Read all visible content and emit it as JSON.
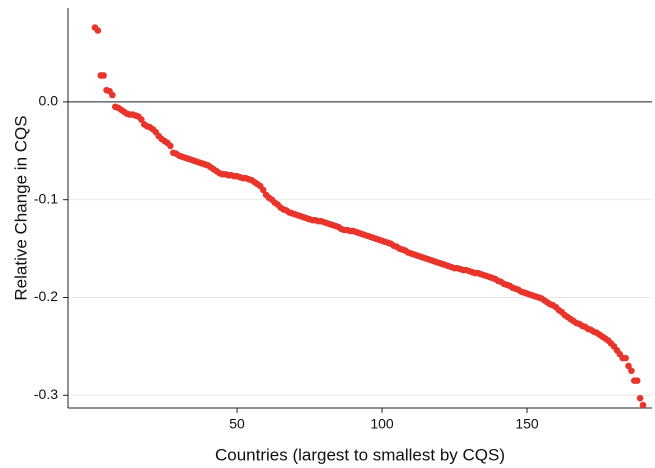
{
  "chart_data": {
    "type": "scatter",
    "x_label": "Countries (largest to smallest by CQS)",
    "y_label": "Relative Change in CQS",
    "color": "#e8352b",
    "reference_line": 0,
    "grid": true,
    "xlim": [
      -8.3,
      193.1
    ],
    "ylim": [
      -0.313,
      0.096
    ],
    "xticks": [
      50,
      100,
      150
    ],
    "yticks": [
      {
        "value": 0,
        "label": "0.0"
      },
      -0.1,
      -0.2,
      -0.3
    ],
    "x": [
      1,
      2,
      3,
      4,
      5,
      6,
      7,
      8,
      9,
      10,
      11,
      12,
      13,
      14,
      15,
      16,
      17,
      18,
      19,
      20,
      21,
      22,
      23,
      24,
      25,
      26,
      27,
      28,
      29,
      30,
      31,
      32,
      33,
      34,
      35,
      36,
      37,
      38,
      39,
      40,
      41,
      42,
      43,
      44,
      45,
      46,
      47,
      48,
      49,
      50,
      51,
      52,
      53,
      54,
      55,
      56,
      57,
      58,
      59,
      60,
      61,
      62,
      63,
      64,
      65,
      66,
      67,
      68,
      69,
      70,
      71,
      72,
      73,
      74,
      75,
      76,
      77,
      78,
      79,
      80,
      81,
      82,
      83,
      84,
      85,
      86,
      87,
      88,
      89,
      90,
      91,
      92,
      93,
      94,
      95,
      96,
      97,
      98,
      99,
      100,
      101,
      102,
      103,
      104,
      105,
      106,
      107,
      108,
      109,
      110,
      111,
      112,
      113,
      114,
      115,
      116,
      117,
      118,
      119,
      120,
      121,
      122,
      123,
      124,
      125,
      126,
      127,
      128,
      129,
      130,
      131,
      132,
      133,
      134,
      135,
      136,
      137,
      138,
      139,
      140,
      141,
      142,
      143,
      144,
      145,
      146,
      147,
      148,
      149,
      150,
      151,
      152,
      153,
      154,
      155,
      156,
      157,
      158,
      159,
      160,
      161,
      162,
      163,
      164,
      165,
      166,
      167,
      168,
      169,
      170,
      171,
      172,
      173,
      174,
      175,
      176,
      177,
      178,
      179,
      180,
      181,
      182,
      183,
      184,
      185,
      186,
      187,
      188,
      189,
      190
    ],
    "values": [
      0.076,
      0.073,
      0.027,
      0.027,
      0.012,
      0.011,
      0.007,
      -0.005,
      -0.006,
      -0.008,
      -0.01,
      -0.012,
      -0.013,
      -0.013,
      -0.014,
      -0.015,
      -0.018,
      -0.023,
      -0.025,
      -0.026,
      -0.028,
      -0.031,
      -0.035,
      -0.038,
      -0.04,
      -0.042,
      -0.045,
      -0.052,
      -0.053,
      -0.055,
      -0.056,
      -0.057,
      -0.058,
      -0.059,
      -0.06,
      -0.061,
      -0.062,
      -0.063,
      -0.064,
      -0.065,
      -0.067,
      -0.069,
      -0.071,
      -0.073,
      -0.074,
      -0.074,
      -0.075,
      -0.075,
      -0.076,
      -0.076,
      -0.077,
      -0.078,
      -0.078,
      -0.079,
      -0.08,
      -0.082,
      -0.084,
      -0.086,
      -0.09,
      -0.095,
      -0.098,
      -0.1,
      -0.103,
      -0.105,
      -0.108,
      -0.11,
      -0.111,
      -0.113,
      -0.114,
      -0.115,
      -0.116,
      -0.117,
      -0.118,
      -0.119,
      -0.12,
      -0.121,
      -0.121,
      -0.122,
      -0.122,
      -0.123,
      -0.124,
      -0.125,
      -0.126,
      -0.127,
      -0.128,
      -0.13,
      -0.131,
      -0.131,
      -0.132,
      -0.132,
      -0.133,
      -0.134,
      -0.135,
      -0.136,
      -0.137,
      -0.138,
      -0.139,
      -0.14,
      -0.141,
      -0.142,
      -0.143,
      -0.144,
      -0.145,
      -0.147,
      -0.148,
      -0.15,
      -0.151,
      -0.152,
      -0.154,
      -0.155,
      -0.156,
      -0.157,
      -0.158,
      -0.159,
      -0.16,
      -0.161,
      -0.162,
      -0.163,
      -0.164,
      -0.165,
      -0.166,
      -0.167,
      -0.168,
      -0.169,
      -0.17,
      -0.17,
      -0.171,
      -0.172,
      -0.172,
      -0.173,
      -0.174,
      -0.175,
      -0.175,
      -0.176,
      -0.177,
      -0.178,
      -0.179,
      -0.18,
      -0.181,
      -0.183,
      -0.184,
      -0.186,
      -0.187,
      -0.188,
      -0.19,
      -0.191,
      -0.192,
      -0.194,
      -0.195,
      -0.196,
      -0.197,
      -0.198,
      -0.199,
      -0.2,
      -0.201,
      -0.203,
      -0.205,
      -0.207,
      -0.208,
      -0.21,
      -0.213,
      -0.215,
      -0.218,
      -0.22,
      -0.222,
      -0.224,
      -0.226,
      -0.227,
      -0.229,
      -0.23,
      -0.232,
      -0.233,
      -0.235,
      -0.236,
      -0.238,
      -0.24,
      -0.242,
      -0.244,
      -0.247,
      -0.25,
      -0.254,
      -0.258,
      -0.262,
      -0.262,
      -0.27,
      -0.275,
      -0.285,
      -0.285,
      -0.303,
      -0.31
    ]
  }
}
